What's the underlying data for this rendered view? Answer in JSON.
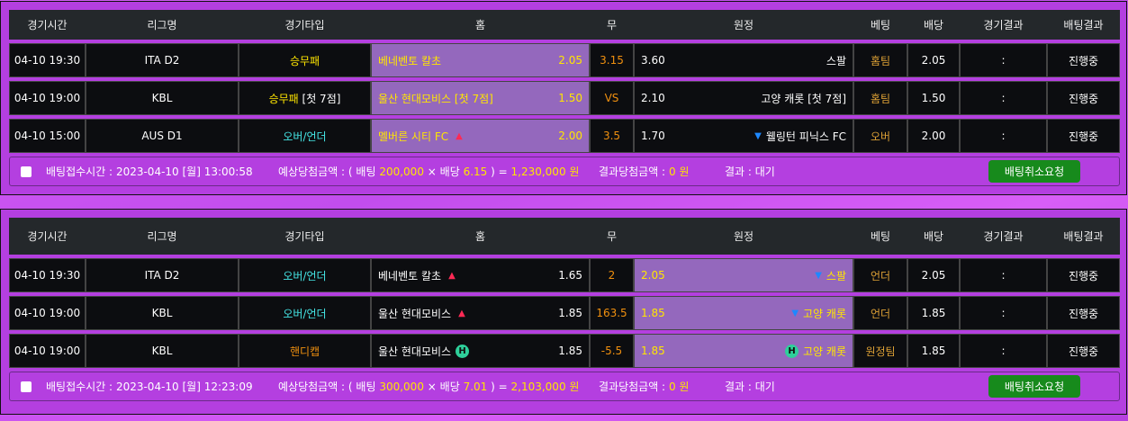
{
  "headers": [
    "경기시간",
    "리그명",
    "경기타입",
    "홈",
    "무",
    "원정",
    "베팅",
    "배당",
    "경기결과",
    "배팅결과"
  ],
  "colors": {
    "selected_bg": "#9468bd",
    "highlight": "#ffe600",
    "draw": "#f0900f",
    "overunder": "#45e6e6",
    "bet": "#dca035",
    "cancel_button": "#178a1c"
  },
  "slips": [
    {
      "rows": [
        {
          "time": "04-10 19:30",
          "league": "ITA D2",
          "type": "승무패",
          "type_suffix": "",
          "type_color": "yel",
          "home": "베네벤토 칼초",
          "home_suffix": "",
          "home_marker": "",
          "home_odds": "2.05",
          "home_selected": true,
          "draw": "3.15",
          "away_odds": "3.60",
          "away": "스팔",
          "away_marker": "",
          "away_selected": false,
          "bet": "홈팀",
          "odds": "2.05",
          "result": ":",
          "status": "진행중"
        },
        {
          "time": "04-10 19:00",
          "league": "KBL",
          "type": "승무패",
          "type_suffix": " [첫 7점]",
          "type_color": "yel",
          "home": "울산 현대모비스 [첫 7점]",
          "home_suffix": "",
          "home_marker": "",
          "home_odds": "1.50",
          "home_selected": true,
          "draw": "VS",
          "away_odds": "2.10",
          "away": "고양 캐롯 [첫 7점]",
          "away_marker": "",
          "away_selected": false,
          "bet": "홈팀",
          "odds": "1.50",
          "result": ":",
          "status": "진행중"
        },
        {
          "time": "04-10 15:00",
          "league": "AUS D1",
          "type": "오버/언더",
          "type_suffix": "",
          "type_color": "tea",
          "home": "멜버른 시티 FC",
          "home_suffix": "",
          "home_marker": "up",
          "home_odds": "2.00",
          "home_selected": true,
          "draw": "3.5",
          "away_odds": "1.70",
          "away": "웰링턴 피닉스 FC",
          "away_marker": "down",
          "away_selected": false,
          "bet": "오버",
          "odds": "2.00",
          "result": ":",
          "status": "진행중"
        }
      ],
      "footer": {
        "time_label": "배팅접수시간 :",
        "time": "2023-04-10 [월] 13:00:58",
        "expected_label": "예상당첨금액 : ( 배팅",
        "stake": "200,000",
        "times": "× 배당",
        "total_odds": "6.15",
        "equals": ") =",
        "payout": "1,230,000 원",
        "result_amount_label": "결과당첨금액 :",
        "result_amount": "0 원",
        "result_label": "결과 : 대기",
        "cancel": "배팅취소요청"
      }
    },
    {
      "rows": [
        {
          "time": "04-10 19:30",
          "league": "ITA D2",
          "type": "오버/언더",
          "type_suffix": "",
          "type_color": "tea",
          "home": "베네벤토 칼초",
          "home_marker": "up",
          "home_odds": "1.65",
          "home_selected": false,
          "draw": "2",
          "away_odds": "2.05",
          "away": "스팔",
          "away_marker": "down",
          "away_selected": true,
          "bet": "언더",
          "odds": "2.05",
          "result": ":",
          "status": "진행중"
        },
        {
          "time": "04-10 19:00",
          "league": "KBL",
          "type": "오버/언더",
          "type_suffix": "",
          "type_color": "tea",
          "home": "울산 현대모비스",
          "home_marker": "up",
          "home_odds": "1.85",
          "home_selected": false,
          "draw": "163.5",
          "away_odds": "1.85",
          "away": "고양 캐롯",
          "away_marker": "down",
          "away_selected": true,
          "bet": "언더",
          "odds": "1.85",
          "result": ":",
          "status": "진행중"
        },
        {
          "time": "04-10 19:00",
          "league": "KBL",
          "type": "핸디캡",
          "type_suffix": "",
          "type_color": "org",
          "home": "울산 현대모비스",
          "home_marker": "H",
          "home_odds": "1.85",
          "home_selected": false,
          "draw": "-5.5",
          "away_odds": "1.85",
          "away": "고양 캐롯",
          "away_marker": "H",
          "away_selected": true,
          "bet": "원정팀",
          "odds": "1.85",
          "result": ":",
          "status": "진행중"
        }
      ],
      "footer": {
        "time_label": "배팅접수시간 :",
        "time": "2023-04-10 [월] 12:23:09",
        "expected_label": "예상당첨금액 : ( 배팅",
        "stake": "300,000",
        "times": "× 배당",
        "total_odds": "7.01",
        "equals": ") =",
        "payout": "2,103,000 원",
        "result_amount_label": "결과당첨금액 :",
        "result_amount": "0 원",
        "result_label": "결과 : 대기",
        "cancel": "배팅취소요청"
      }
    }
  ]
}
